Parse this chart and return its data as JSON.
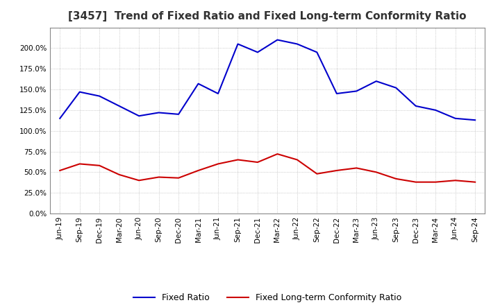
{
  "title": "[3457]  Trend of Fixed Ratio and Fixed Long-term Conformity Ratio",
  "x_labels": [
    "Jun-19",
    "Sep-19",
    "Dec-19",
    "Mar-20",
    "Jun-20",
    "Sep-20",
    "Dec-20",
    "Mar-21",
    "Jun-21",
    "Sep-21",
    "Dec-21",
    "Mar-22",
    "Jun-22",
    "Sep-22",
    "Dec-22",
    "Mar-23",
    "Jun-23",
    "Sep-23",
    "Dec-23",
    "Mar-24",
    "Jun-24",
    "Sep-24"
  ],
  "fixed_ratio": [
    115,
    147,
    142,
    130,
    118,
    122,
    120,
    157,
    145,
    205,
    195,
    210,
    205,
    195,
    145,
    148,
    160,
    152,
    130,
    125,
    115,
    113
  ],
  "fixed_lt_ratio": [
    52,
    60,
    58,
    47,
    40,
    44,
    43,
    52,
    60,
    65,
    62,
    72,
    65,
    48,
    52,
    55,
    50,
    42,
    38,
    38,
    40,
    38
  ],
  "fixed_ratio_color": "#0000cc",
  "fixed_lt_ratio_color": "#cc0000",
  "ylim": [
    0,
    225
  ],
  "yticks": [
    0,
    25,
    50,
    75,
    100,
    125,
    150,
    175,
    200
  ],
  "background_color": "#ffffff",
  "grid_color": "#aaaaaa",
  "plot_bg_color": "#ffffff",
  "spine_color": "#888888"
}
